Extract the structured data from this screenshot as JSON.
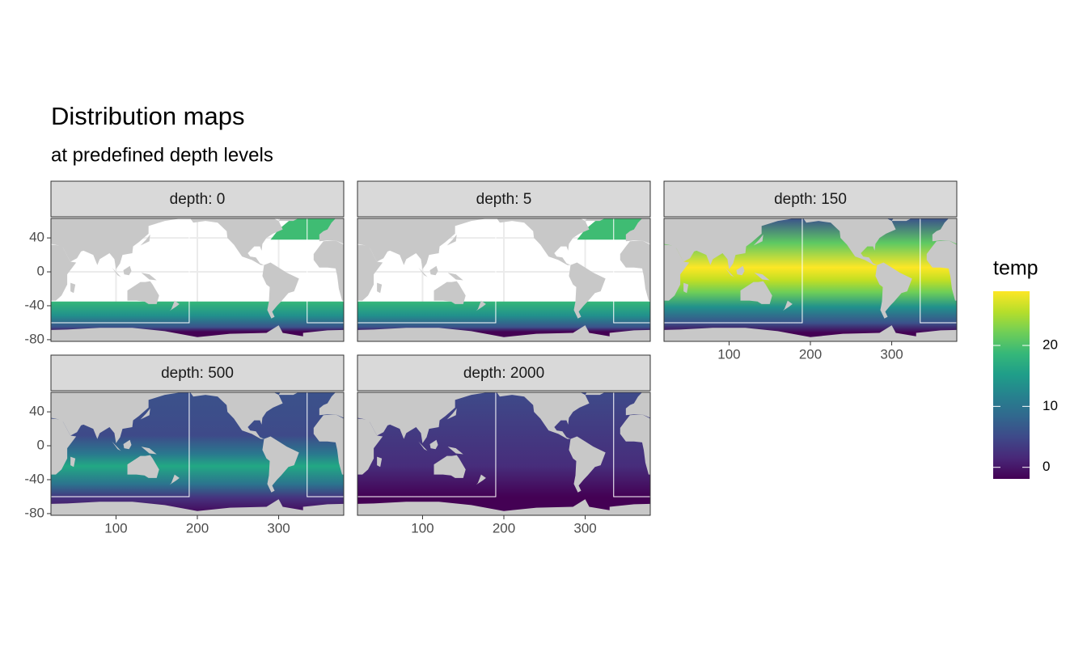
{
  "chart_data": {
    "type": "facet-map",
    "title": "Distribution maps",
    "subtitle": "at predefined depth levels",
    "panels": [
      "depth: 0",
      "depth: 5",
      "depth: 150",
      "depth: 500",
      "depth: 2000"
    ],
    "xlim": [
      20,
      380
    ],
    "xticks": [
      100,
      200,
      300
    ],
    "ylim": [
      -82,
      63
    ],
    "yticks": [
      40,
      0,
      -40,
      -80
    ],
    "grid": true,
    "legend": {
      "title": "temp",
      "limits": [
        -1.9,
        28.9
      ],
      "ticks": [
        0,
        10,
        20
      ],
      "colors": [
        "#440154",
        "#482878",
        "#3e4989",
        "#31688e",
        "#26828e",
        "#1f9e89",
        "#35b779",
        "#6ece58",
        "#b5de2b",
        "#fde725"
      ]
    }
  }
}
